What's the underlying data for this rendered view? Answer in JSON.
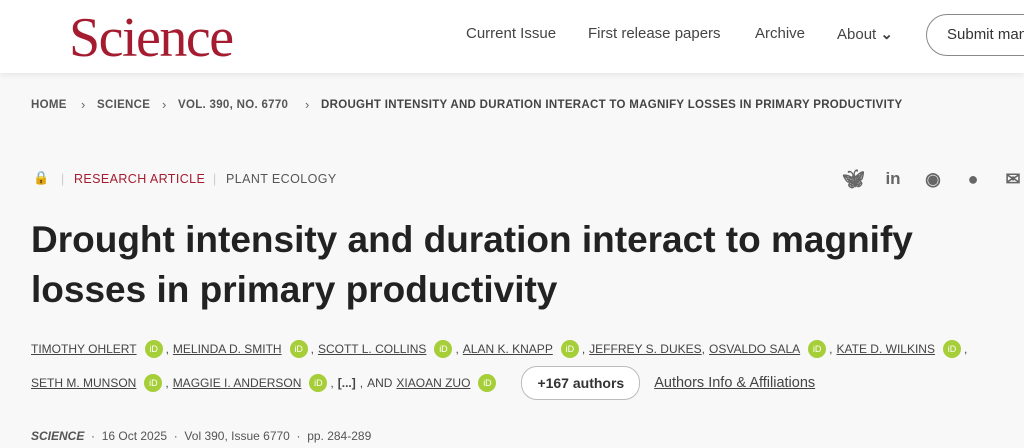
{
  "header": {
    "logo": "Science",
    "nav": [
      "Current Issue",
      "First release papers",
      "Archive",
      "About"
    ],
    "submit": "Submit manuscript"
  },
  "breadcrumb": [
    "HOME",
    "SCIENCE",
    "VOL. 390, NO. 6770",
    "DROUGHT INTENSITY AND DURATION INTERACT TO MAGNIFY LOSSES IN PRIMARY PRODUCTIVITY"
  ],
  "article": {
    "type": "RESEARCH ARTICLE",
    "subject": "PLANT ECOLOGY",
    "title": "Drought intensity and duration interact to magnify losses in primary productivity"
  },
  "share_icons": [
    "bluesky-icon",
    "linkedin-icon",
    "reddit-icon",
    "wechat-icon",
    "email-icon"
  ],
  "authors_line1": [
    "TIMOTHY OHLERT",
    "MELINDA D. SMITH",
    "SCOTT L. COLLINS",
    "ALAN K. KNAPP",
    "JEFFREY S. DUKES",
    "OSVALDO SALA",
    "KATE D. WILKINS"
  ],
  "authors_line2": [
    "SETH M. MUNSON",
    "MAGGIE I. ANDERSON",
    "XIAOAN ZUO"
  ],
  "ellipsis": "[...]",
  "and": "AND",
  "orcid": "iD",
  "more_authors": "+167 authors",
  "affiliations": "Authors Info & Affiliations",
  "footer": {
    "journal": "SCIENCE",
    "date": "16 Oct 2025",
    "volume": "Vol 390, Issue 6770",
    "pages": "pp. 284-289"
  },
  "colors": {
    "brand": "#a51c30",
    "orcid": "#a6ce39",
    "link": "#1d5fa8"
  }
}
